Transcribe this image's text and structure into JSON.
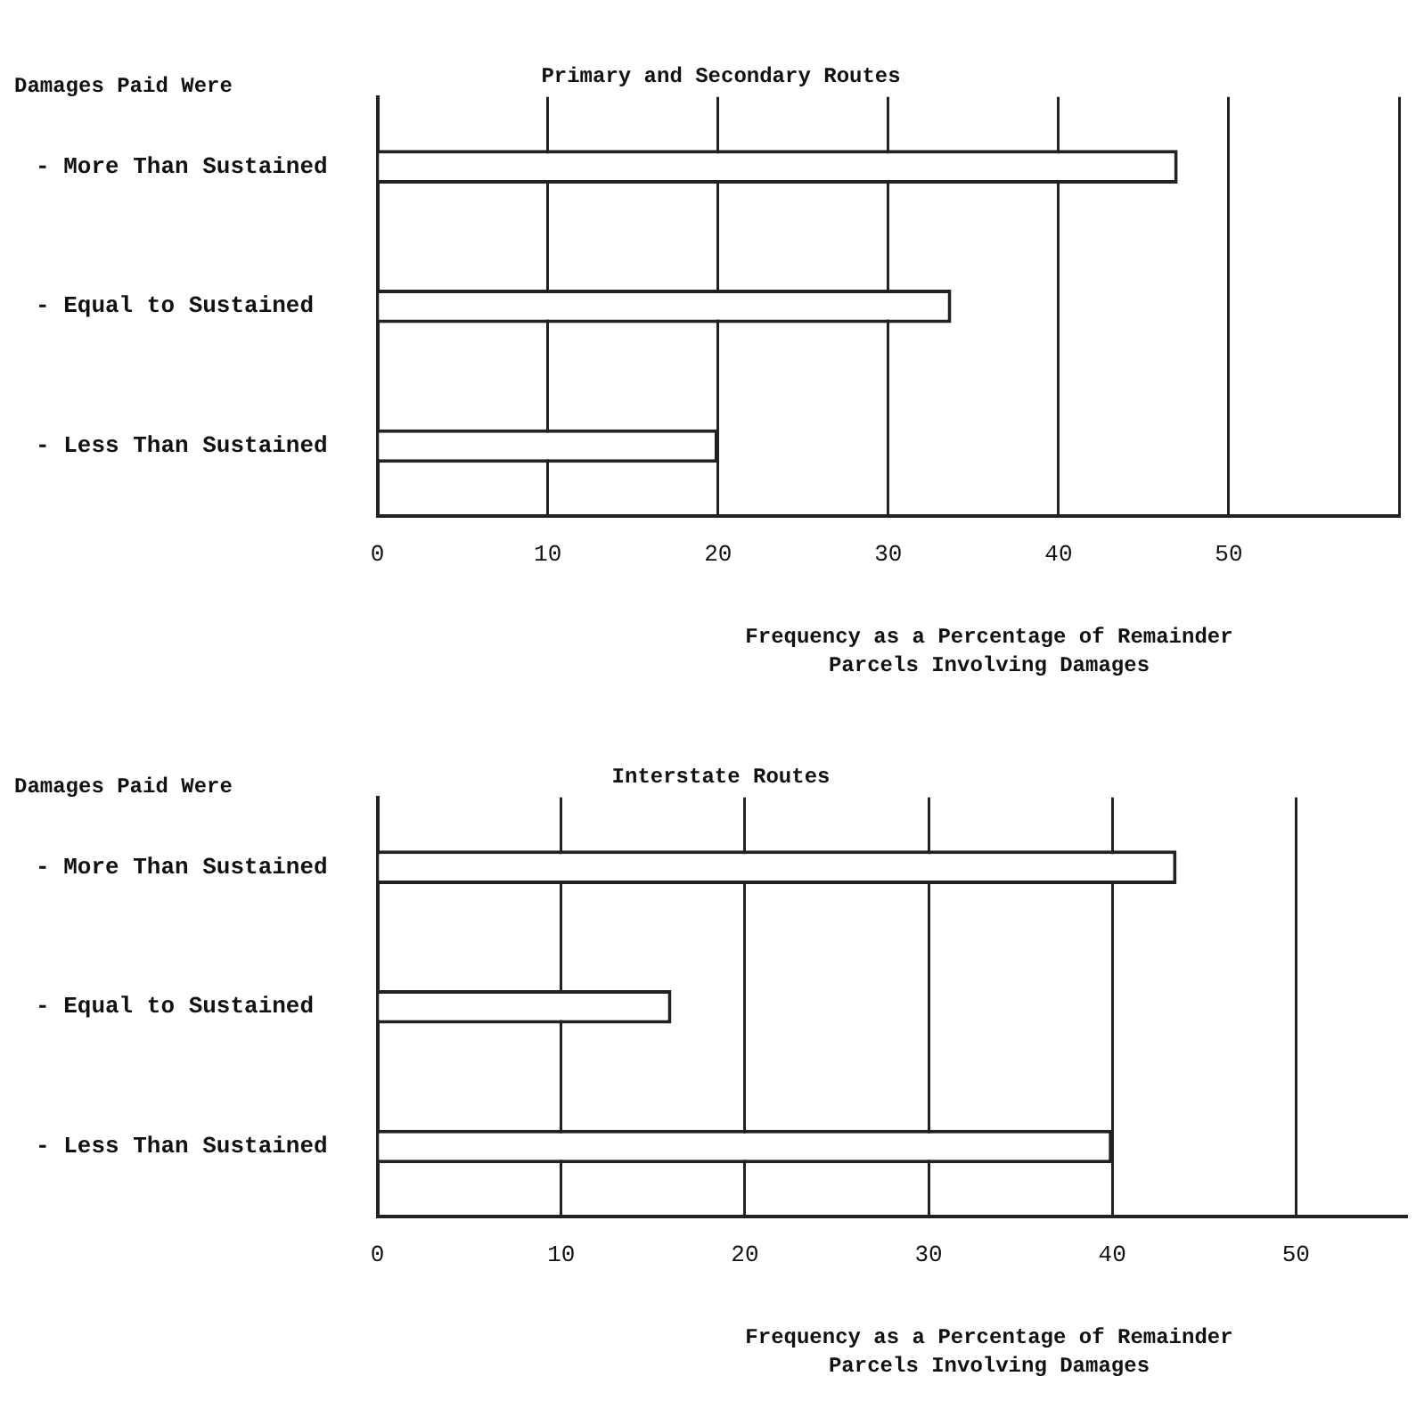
{
  "chart_data": [
    {
      "type": "bar",
      "orientation": "horizontal",
      "title": "Primary and Secondary Routes",
      "ylabel": "Damages Paid Were",
      "xlabel": "Frequency as a Percentage of Remainder\nParcels Involving Damages",
      "categories": [
        "- More Than Sustained",
        "- Equal to Sustained",
        "- Less Than Sustained"
      ],
      "values": [
        47,
        33.7,
        20
      ],
      "color": "#ffffff",
      "xlim": [
        0,
        60
      ],
      "xticks": [
        0,
        10,
        20,
        30,
        40,
        50,
        {
          "value": 60,
          "label": null
        }
      ],
      "grid": "x",
      "legend": false
    },
    {
      "type": "bar",
      "orientation": "horizontal",
      "title": "Interstate Routes",
      "ylabel": "Damages Paid Were",
      "xlabel": "Frequency as a Percentage of Remainder\nParcels Involving Damages",
      "categories": [
        "- More Than Sustained",
        "- Equal to Sustained",
        "- Less Than Sustained"
      ],
      "values": [
        43.5,
        16,
        40
      ],
      "color": "#ffffff",
      "xlim": [
        0,
        56
      ],
      "xticks": [
        0,
        10,
        20,
        30,
        40,
        50
      ],
      "grid": "x",
      "legend": false
    }
  ]
}
